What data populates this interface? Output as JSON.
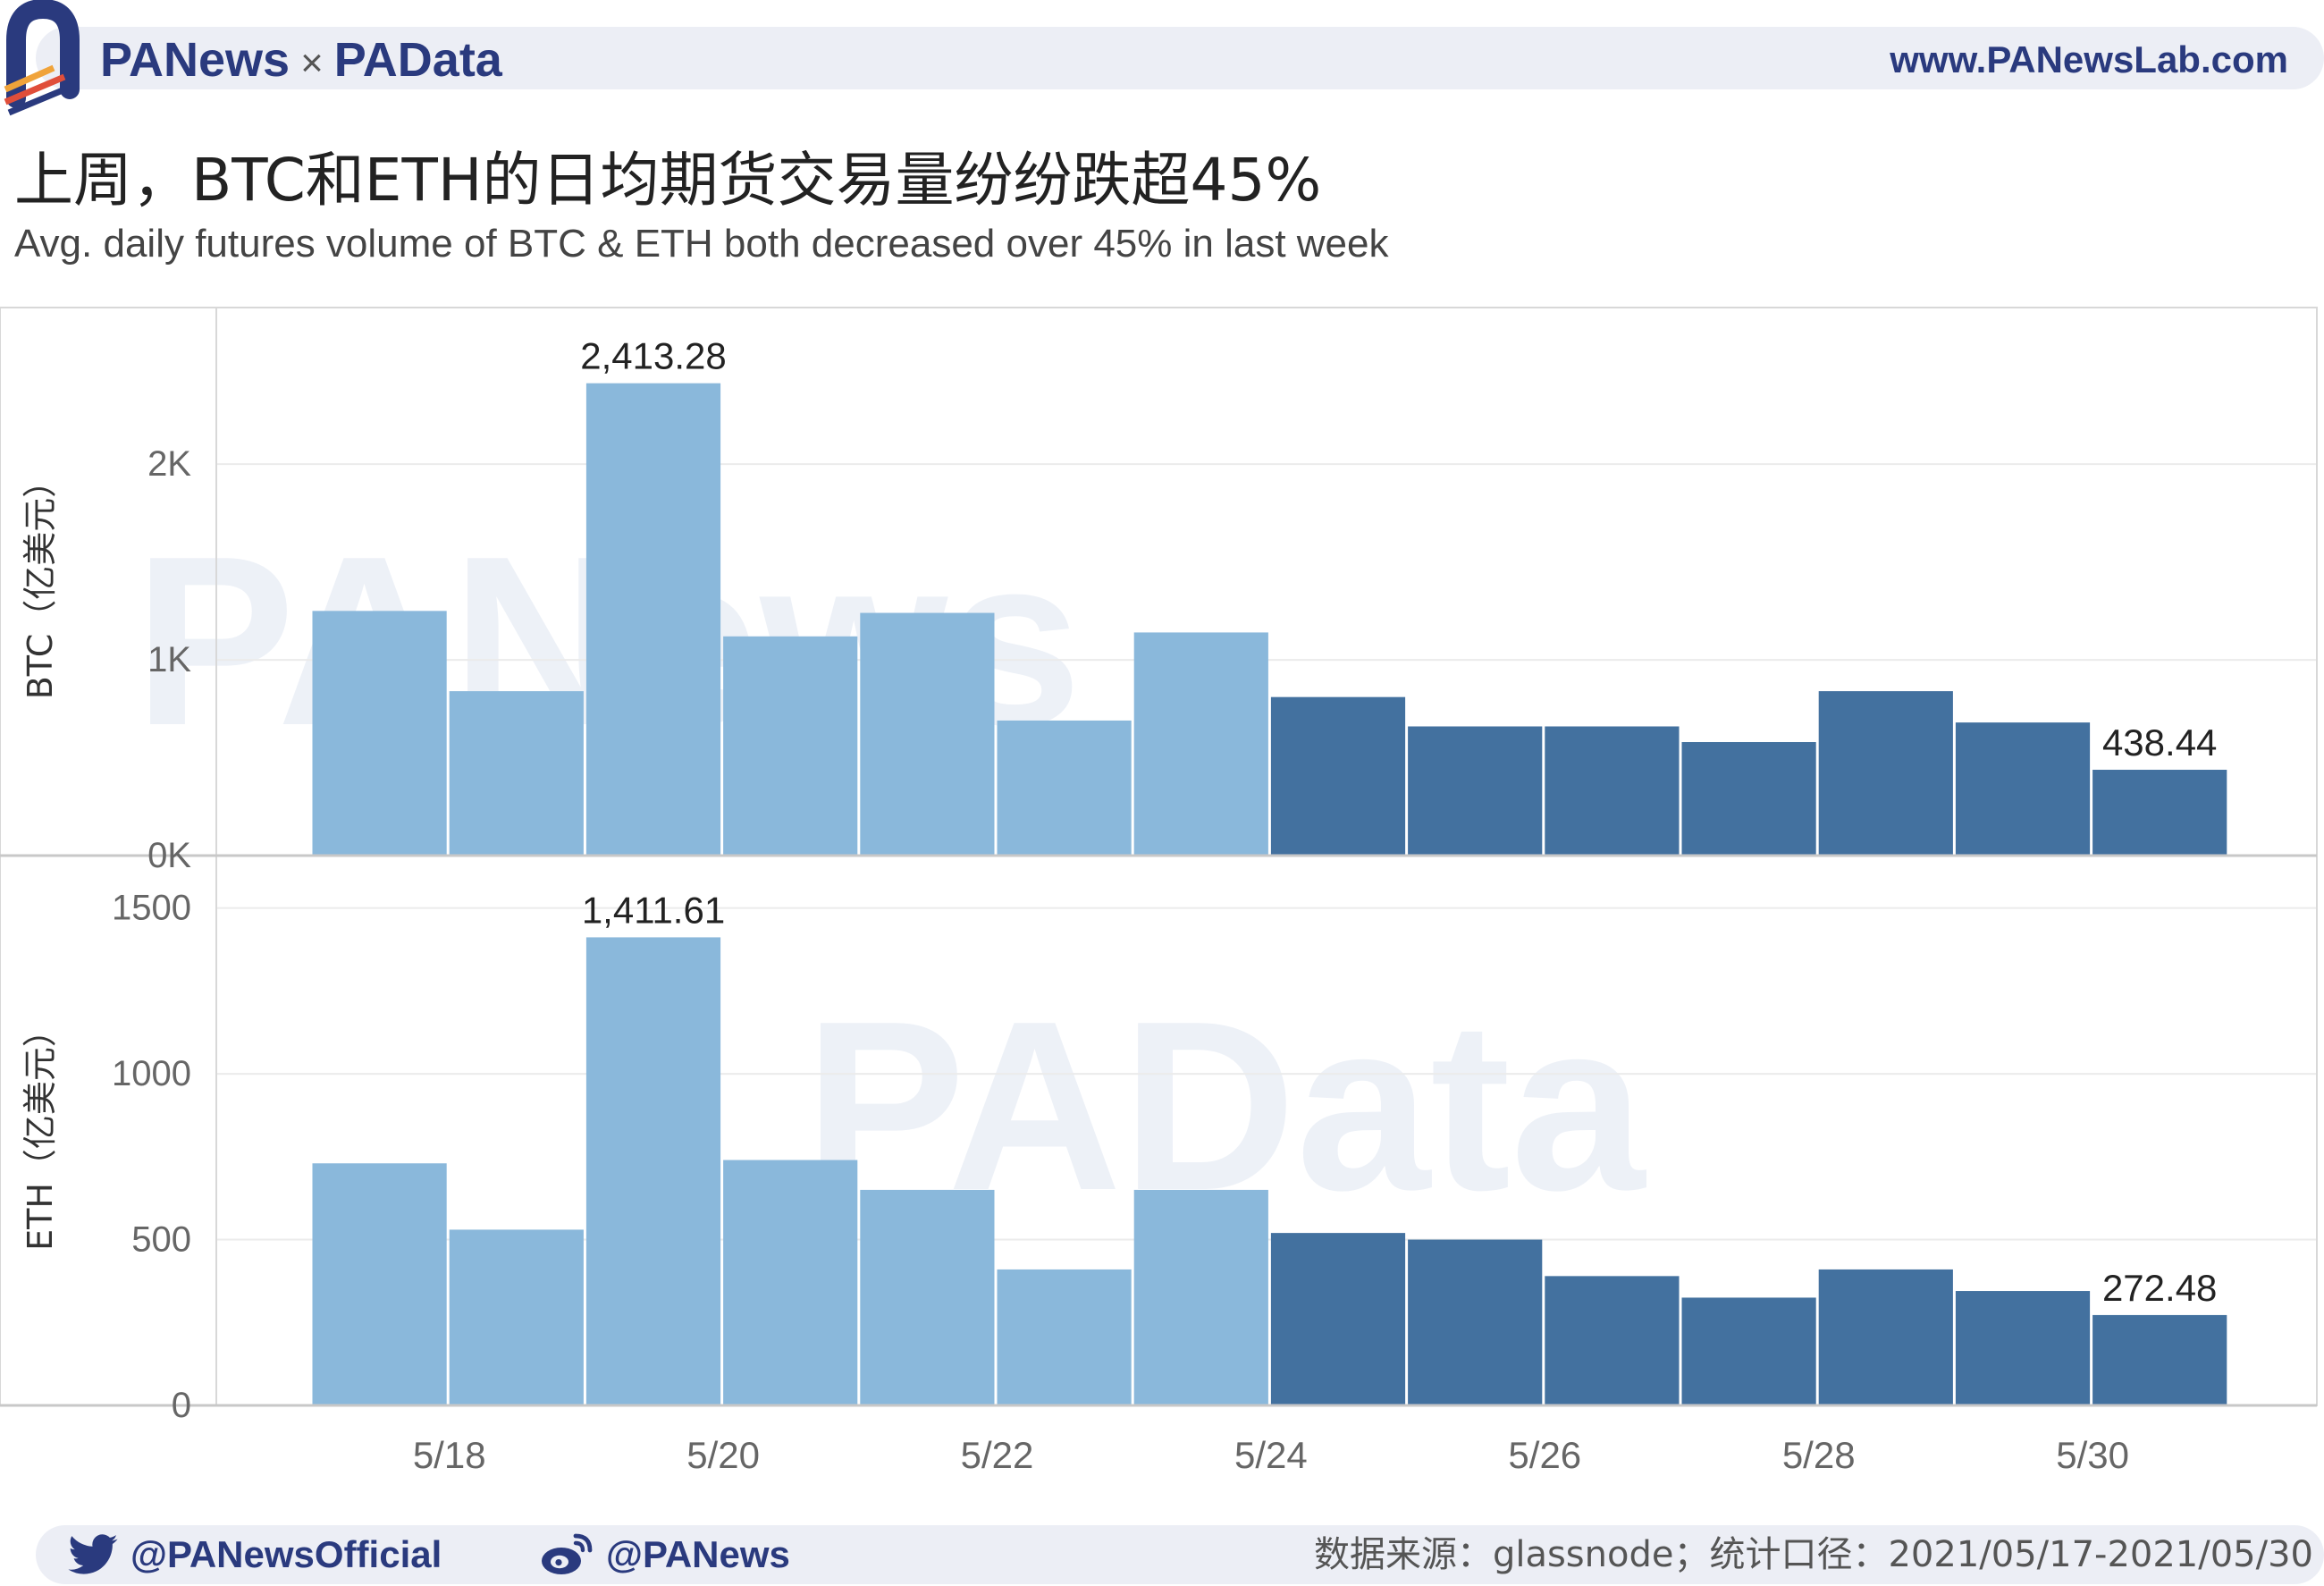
{
  "brand": {
    "left": "PANews",
    "separator": "×",
    "right": "PAData",
    "url": "www.PANewsLab.com"
  },
  "title_cn": "上周，BTC和ETH的日均期货交易量纷纷跌超45%",
  "title_en": "Avg. daily futures volume of BTC & ETH both decreased over 45% in last week",
  "watermarks": [
    "PANews",
    "PAData"
  ],
  "footer": {
    "twitter": "@PANewsOfficial",
    "weibo": "@PANews",
    "source": "数据来源：glassnode；统计口径：2021/05/17-2021/05/30"
  },
  "colors": {
    "week1": "#8ab8db",
    "week2": "#43719f",
    "brand": "#2a3a7e"
  },
  "chart_data": {
    "type": "bar",
    "x": [
      "5/17",
      "5/18",
      "5/19",
      "5/20",
      "5/21",
      "5/22",
      "5/23",
      "5/24",
      "5/25",
      "5/26",
      "5/27",
      "5/28",
      "5/29",
      "5/30"
    ],
    "xticks": [
      "5/18",
      "5/20",
      "5/22",
      "5/24",
      "5/26",
      "5/28",
      "5/30"
    ],
    "panels": [
      {
        "name": "BTC",
        "ylabel": "BTC（亿美元）",
        "ylim": [
          0,
          2800
        ],
        "yticks": [
          0,
          1000,
          2000
        ],
        "ytick_labels": [
          "0K",
          "1K",
          "2K"
        ],
        "values": [
          1250,
          840,
          2413.28,
          1120,
          1240,
          690,
          1140,
          810,
          660,
          660,
          580,
          840,
          680,
          438.44
        ],
        "labels": [
          {
            "index": 2,
            "text": "2,413.28"
          },
          {
            "index": 13,
            "text": "438.44"
          }
        ]
      },
      {
        "name": "ETH",
        "ylabel": "ETH（亿美元）",
        "ylim": [
          0,
          1650
        ],
        "yticks": [
          0,
          500,
          1000,
          1500
        ],
        "ytick_labels": [
          "0",
          "500",
          "1000",
          "1500"
        ],
        "values": [
          730,
          530,
          1411.61,
          740,
          650,
          410,
          650,
          520,
          500,
          390,
          325,
          410,
          345,
          272.48
        ],
        "labels": [
          {
            "index": 2,
            "text": "1,411.61"
          },
          {
            "index": 13,
            "text": "272.48"
          }
        ]
      }
    ],
    "highlight": {
      "week1": [
        "5/17",
        "5/23"
      ],
      "week2": [
        "5/24",
        "5/30"
      ]
    }
  }
}
